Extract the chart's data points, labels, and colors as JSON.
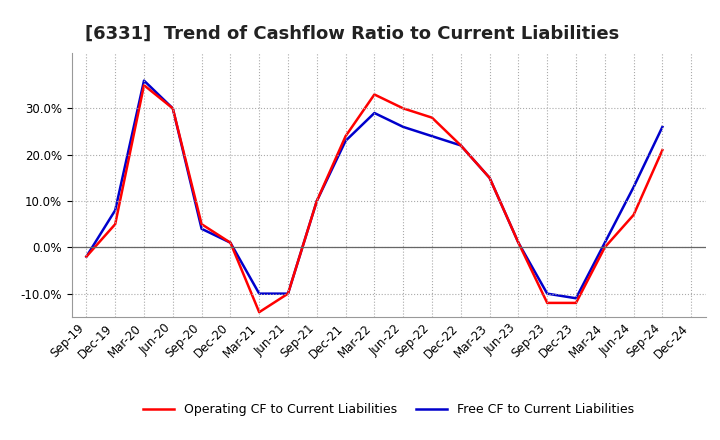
{
  "title": "[6331]  Trend of Cashflow Ratio to Current Liabilities",
  "x_labels": [
    "Sep-19",
    "Dec-19",
    "Mar-20",
    "Jun-20",
    "Sep-20",
    "Dec-20",
    "Mar-21",
    "Jun-21",
    "Sep-21",
    "Dec-21",
    "Mar-22",
    "Jun-22",
    "Sep-22",
    "Dec-22",
    "Mar-23",
    "Jun-23",
    "Sep-23",
    "Dec-23",
    "Mar-24",
    "Jun-24",
    "Sep-24",
    "Dec-24"
  ],
  "operating_cf": [
    -0.02,
    0.05,
    0.35,
    0.3,
    0.05,
    0.01,
    -0.14,
    -0.1,
    0.1,
    0.24,
    0.33,
    0.3,
    0.28,
    0.22,
    0.15,
    0.01,
    -0.12,
    -0.12,
    0.0,
    0.07,
    0.21,
    null
  ],
  "free_cf": [
    -0.02,
    0.08,
    0.36,
    0.3,
    0.04,
    0.01,
    -0.1,
    -0.1,
    0.1,
    0.23,
    0.29,
    0.26,
    0.24,
    0.22,
    0.15,
    0.01,
    -0.1,
    -0.11,
    0.01,
    0.13,
    0.26,
    null
  ],
  "operating_cf_color": "#ff0000",
  "free_cf_color": "#0000cc",
  "ylim": [
    -0.15,
    0.42
  ],
  "yticks": [
    -0.1,
    0.0,
    0.1,
    0.2,
    0.3
  ],
  "background_color": "#ffffff",
  "plot_bg_color": "#ffffff",
  "grid_color": "#aaaaaa",
  "legend_op": "Operating CF to Current Liabilities",
  "legend_free": "Free CF to Current Liabilities",
  "title_fontsize": 13,
  "tick_fontsize": 8.5
}
